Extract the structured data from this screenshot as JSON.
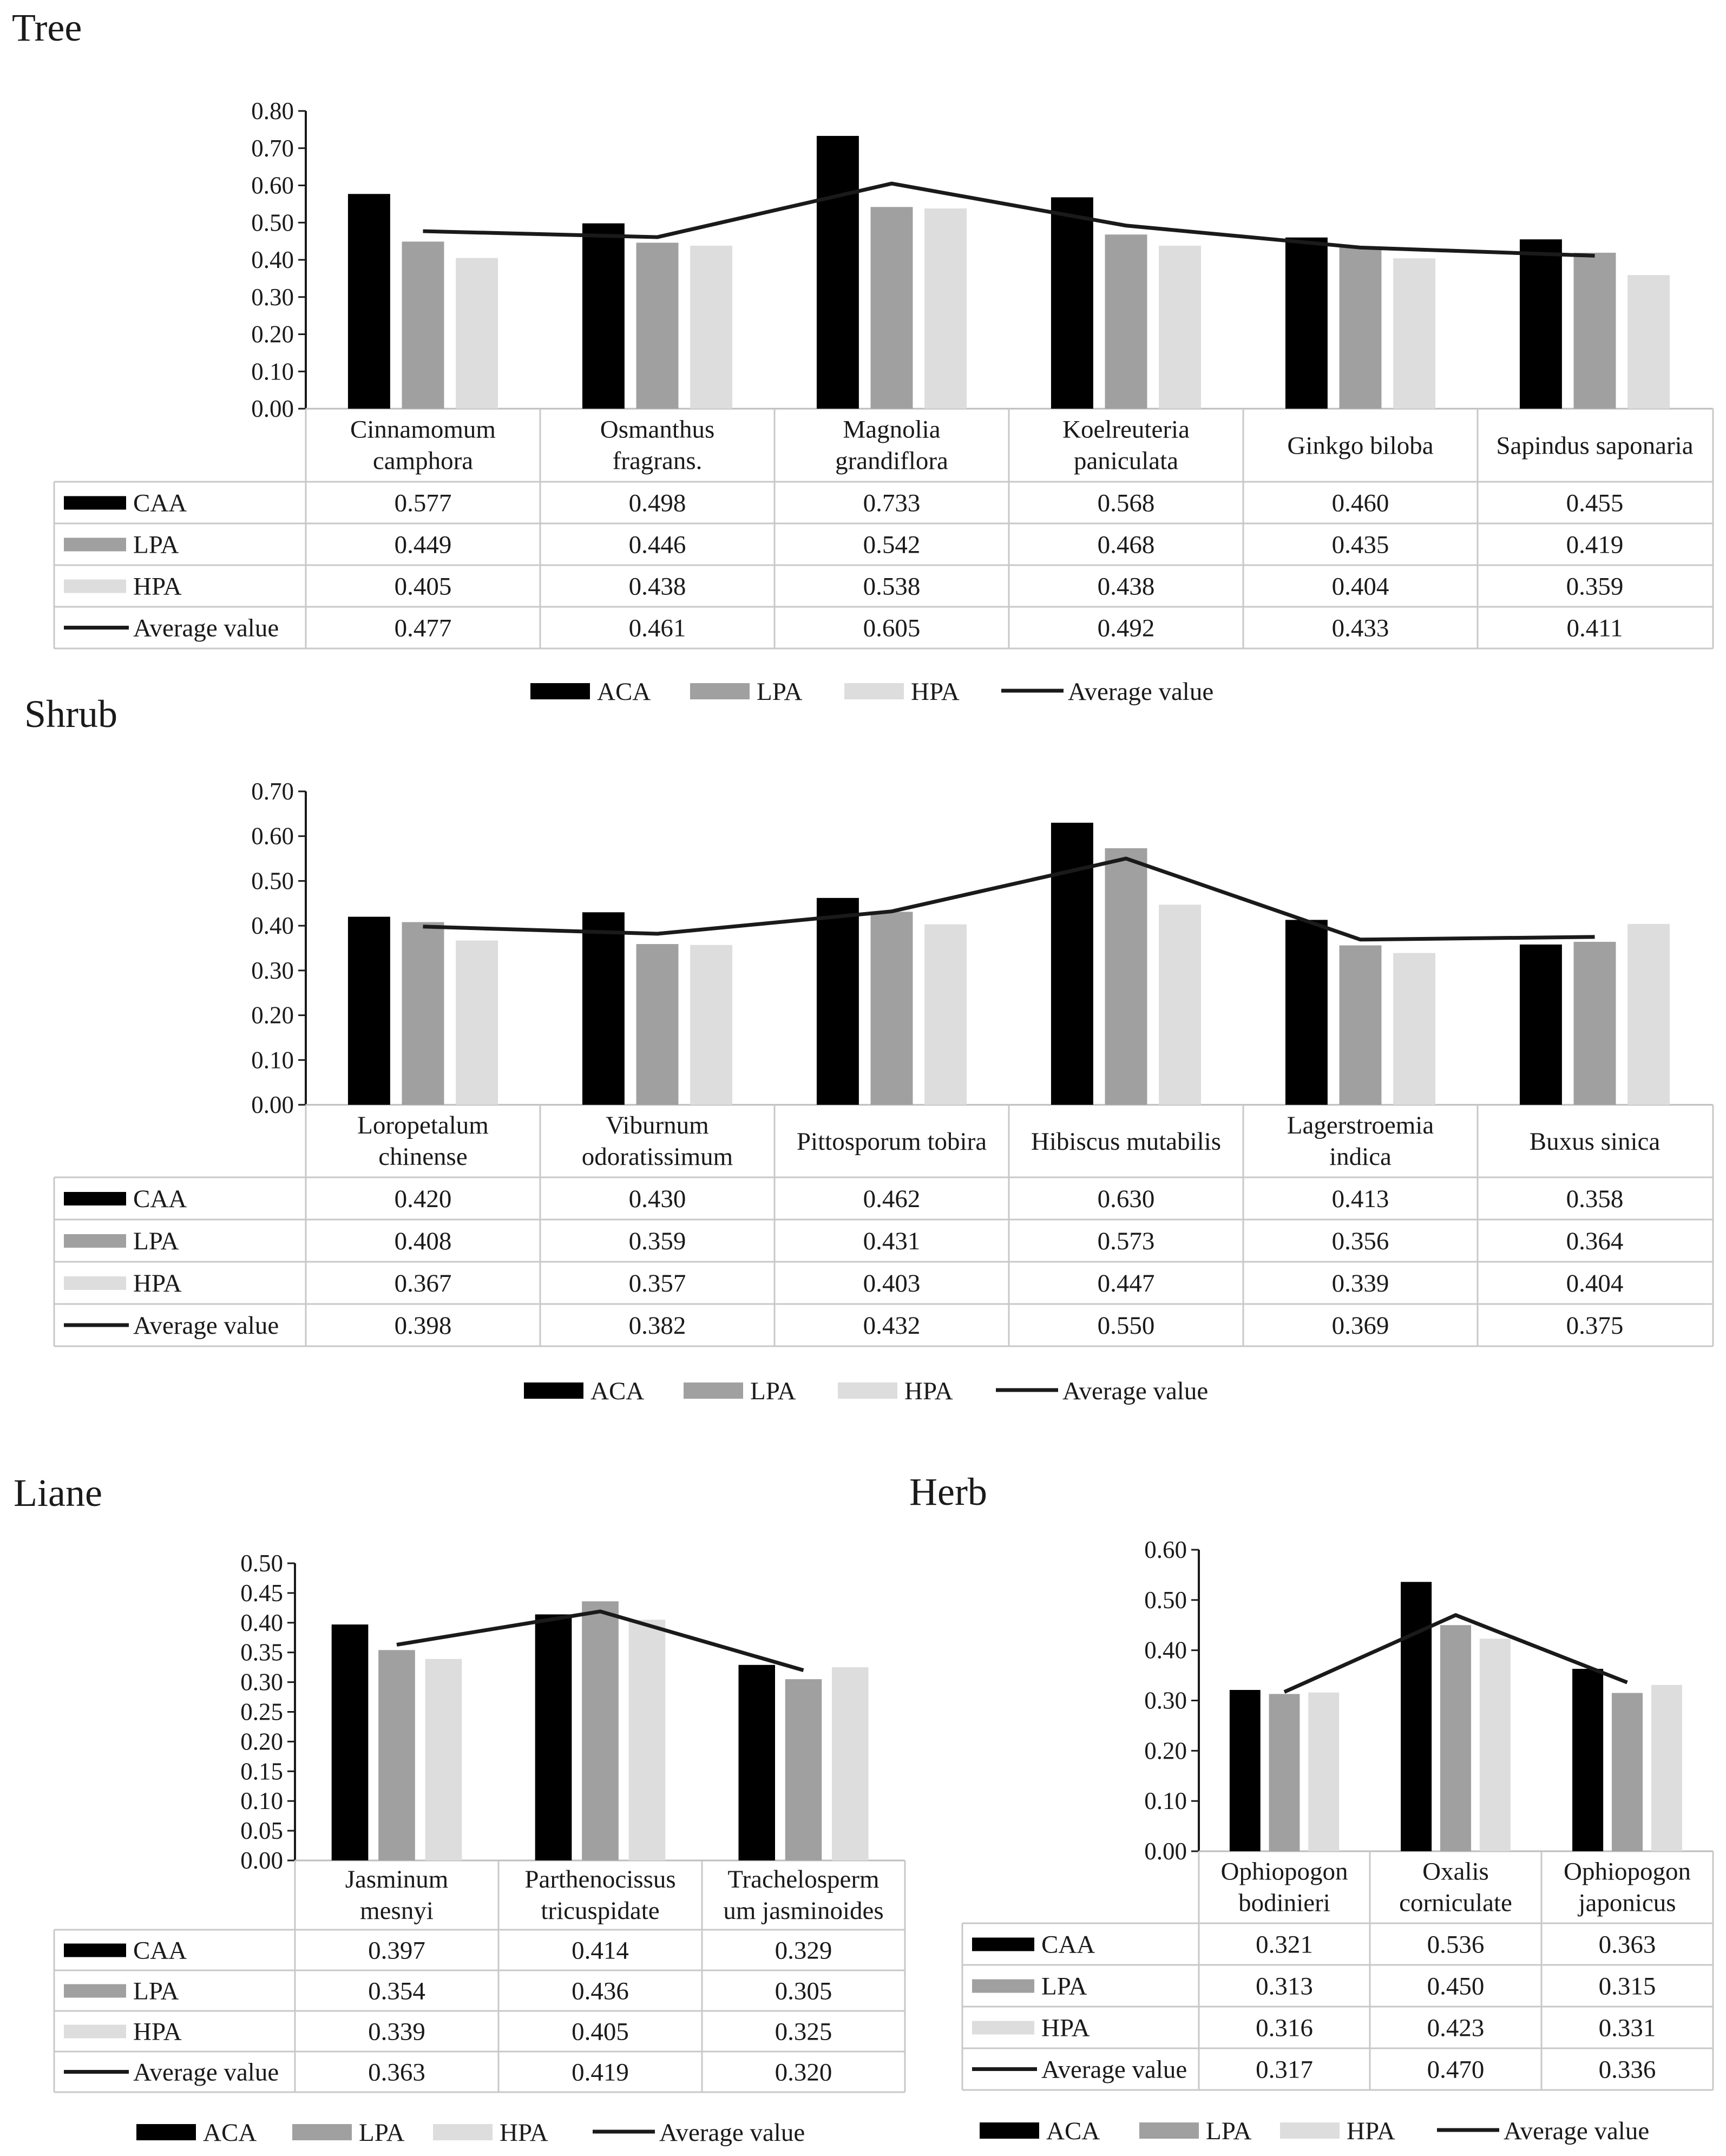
{
  "chart_data": [
    {
      "type": "bar",
      "title": "Tree",
      "categories": [
        [
          "Cinnamomum",
          "camphora"
        ],
        [
          "Osmanthus",
          "fragrans."
        ],
        [
          "Magnolia",
          "grandiflora"
        ],
        [
          "Koelreuteria",
          "paniculata"
        ],
        [
          "Ginkgo biloba"
        ],
        [
          "Sapindus saponaria"
        ]
      ],
      "ylim": [
        0,
        0.8
      ],
      "yticks": [
        "0.00",
        "0.10",
        "0.20",
        "0.30",
        "0.40",
        "0.50",
        "0.60",
        "0.70",
        "0.80"
      ],
      "series": [
        {
          "name": "CAA",
          "legend": "ACA",
          "color": "#000000",
          "kind": "bar",
          "values": [
            0.577,
            0.498,
            0.733,
            0.568,
            0.46,
            0.455
          ],
          "labels": [
            "0.577",
            "0.498",
            "0.733",
            "0.568",
            "0.460",
            "0.455"
          ]
        },
        {
          "name": "LPA",
          "legend": "LPA",
          "color": "#a0a0a0",
          "kind": "bar",
          "values": [
            0.449,
            0.446,
            0.542,
            0.468,
            0.435,
            0.419
          ],
          "labels": [
            "0.449",
            "0.446",
            "0.542",
            "0.468",
            "0.435",
            "0.419"
          ]
        },
        {
          "name": "HPA",
          "legend": "HPA",
          "color": "#dddddd",
          "kind": "bar",
          "values": [
            0.405,
            0.438,
            0.538,
            0.438,
            0.404,
            0.359
          ],
          "labels": [
            "0.405",
            "0.438",
            "0.538",
            "0.438",
            "0.404",
            "0.359"
          ]
        },
        {
          "name": "Average value",
          "legend": "Average value",
          "color": "#1a1a1a",
          "kind": "line",
          "values": [
            0.477,
            0.461,
            0.605,
            0.492,
            0.433,
            0.411
          ],
          "labels": [
            "0.477",
            "0.461",
            "0.605",
            "0.492",
            "0.433",
            "0.411"
          ]
        }
      ]
    },
    {
      "type": "bar",
      "title": "Shrub",
      "categories": [
        [
          "Loropetalum",
          "chinense"
        ],
        [
          "Viburnum",
          "odoratissimum"
        ],
        [
          "Pittosporum tobira"
        ],
        [
          "Hibiscus mutabilis"
        ],
        [
          "Lagerstroemia",
          "indica"
        ],
        [
          "Buxus sinica"
        ]
      ],
      "ylim": [
        0,
        0.7
      ],
      "yticks": [
        "0.00",
        "0.10",
        "0.20",
        "0.30",
        "0.40",
        "0.50",
        "0.60",
        "0.70"
      ],
      "series": [
        {
          "name": "CAA",
          "legend": "ACA",
          "color": "#000000",
          "kind": "bar",
          "values": [
            0.42,
            0.43,
            0.462,
            0.63,
            0.413,
            0.358
          ],
          "labels": [
            "0.420",
            "0.430",
            "0.462",
            "0.630",
            "0.413",
            "0.358"
          ]
        },
        {
          "name": "LPA",
          "legend": "LPA",
          "color": "#a0a0a0",
          "kind": "bar",
          "values": [
            0.408,
            0.359,
            0.431,
            0.573,
            0.356,
            0.364
          ],
          "labels": [
            "0.408",
            "0.359",
            "0.431",
            "0.573",
            "0.356",
            "0.364"
          ]
        },
        {
          "name": "HPA",
          "legend": "HPA",
          "color": "#dddddd",
          "kind": "bar",
          "values": [
            0.367,
            0.357,
            0.403,
            0.447,
            0.339,
            0.404
          ],
          "labels": [
            "0.367",
            "0.357",
            "0.403",
            "0.447",
            "0.339",
            "0.404"
          ]
        },
        {
          "name": "Average value",
          "legend": "Average value",
          "color": "#1a1a1a",
          "kind": "line",
          "values": [
            0.398,
            0.382,
            0.432,
            0.55,
            0.369,
            0.375
          ],
          "labels": [
            "0.398",
            "0.382",
            "0.432",
            "0.550",
            "0.369",
            "0.375"
          ]
        }
      ]
    },
    {
      "type": "bar",
      "title": "Liane",
      "categories": [
        [
          "Jasminum",
          "mesnyi"
        ],
        [
          "Parthenocissus",
          "tricuspidate"
        ],
        [
          "Trachelosperm",
          "um jasminoides"
        ]
      ],
      "ylim": [
        0,
        0.5
      ],
      "yticks": [
        "0.00",
        "0.05",
        "0.10",
        "0.15",
        "0.20",
        "0.25",
        "0.30",
        "0.35",
        "0.40",
        "0.45",
        "0.50"
      ],
      "series": [
        {
          "name": "CAA",
          "legend": "ACA",
          "color": "#000000",
          "kind": "bar",
          "values": [
            0.397,
            0.414,
            0.329
          ],
          "labels": [
            "0.397",
            "0.414",
            "0.329"
          ]
        },
        {
          "name": "LPA",
          "legend": "LPA",
          "color": "#a0a0a0",
          "kind": "bar",
          "values": [
            0.354,
            0.436,
            0.305
          ],
          "labels": [
            "0.354",
            "0.436",
            "0.305"
          ]
        },
        {
          "name": "HPA",
          "legend": "HPA",
          "color": "#dddddd",
          "kind": "bar",
          "values": [
            0.339,
            0.405,
            0.325
          ],
          "labels": [
            "0.339",
            "0.405",
            "0.325"
          ]
        },
        {
          "name": "Average value",
          "legend": "Average value",
          "color": "#1a1a1a",
          "kind": "line",
          "values": [
            0.363,
            0.419,
            0.32
          ],
          "labels": [
            "0.363",
            "0.419",
            "0.320"
          ]
        }
      ]
    },
    {
      "type": "bar",
      "title": "Herb",
      "categories": [
        [
          "Ophiopogon",
          "bodinieri"
        ],
        [
          "Oxalis",
          "corniculate"
        ],
        [
          "Ophiopogon",
          "japonicus"
        ]
      ],
      "ylim": [
        0,
        0.6
      ],
      "yticks": [
        "0.00",
        "0.10",
        "0.20",
        "0.30",
        "0.40",
        "0.50",
        "0.60"
      ],
      "series": [
        {
          "name": "CAA",
          "legend": "ACA",
          "color": "#000000",
          "kind": "bar",
          "values": [
            0.321,
            0.536,
            0.363
          ],
          "labels": [
            "0.321",
            "0.536",
            "0.363"
          ]
        },
        {
          "name": "LPA",
          "legend": "LPA",
          "color": "#a0a0a0",
          "kind": "bar",
          "values": [
            0.313,
            0.45,
            0.315
          ],
          "labels": [
            "0.313",
            "0.450",
            "0.315"
          ]
        },
        {
          "name": "HPA",
          "legend": "HPA",
          "color": "#dddddd",
          "kind": "bar",
          "values": [
            0.316,
            0.423,
            0.331
          ],
          "labels": [
            "0.316",
            "0.423",
            "0.331"
          ]
        },
        {
          "name": "Average value",
          "legend": "Average value",
          "color": "#1a1a1a",
          "kind": "line",
          "values": [
            0.317,
            0.47,
            0.336
          ],
          "labels": [
            "0.317",
            "0.470",
            "0.336"
          ]
        }
      ]
    }
  ]
}
